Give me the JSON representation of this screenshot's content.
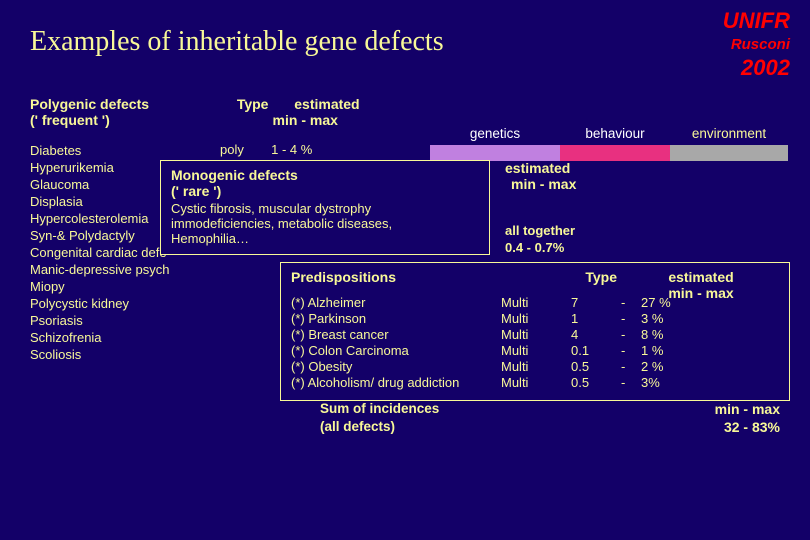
{
  "header": {
    "org": "UNIFR",
    "author": "Rusconi",
    "year": "2002"
  },
  "title": "Examples of inheritable gene defects",
  "poly": {
    "heading1": "Polygenic defects",
    "heading2": "(' frequent ')",
    "col_type": "Type",
    "col_est1": "estimated",
    "col_est2": "min  -  max",
    "first_type": "poly",
    "first_val": "1      -    4 %",
    "items": [
      "Diabetes",
      "Hyperurikemia",
      "Glaucoma",
      "Displasia",
      "Hypercolesterolemia",
      "Syn-& Polydactyly",
      "Congenital cardiac defe",
      "Manic-depressive psych",
      "Miopy",
      "Polycystic kidney",
      "Psoriasis",
      "Schizofrenia",
      "Scoliosis"
    ]
  },
  "bar": {
    "labels": [
      "genetics",
      "behaviour",
      "environment"
    ],
    "colors": [
      "#c080e0",
      "#e83080",
      "#a8a8a8"
    ],
    "widths": [
      130,
      110,
      118
    ],
    "label_colors": [
      "#ffffff",
      "#ffffff",
      "#f8f898"
    ]
  },
  "mono": {
    "title1": "Monogenic defects",
    "title2": "(' rare ')",
    "body1": "Cystic fibrosis, muscular dystrophy",
    "body2": "immodeficiencies, metabolic diseases,",
    "body3": "Hemophilia…",
    "est_head1": "estimated",
    "est_head2": "min  -  max",
    "val1": "all together",
    "val2": "0.4     -   0.7%"
  },
  "pred": {
    "title": "Predispositions",
    "type_head": "Type",
    "est_head1": "estimated",
    "est_head2": "min  -  max",
    "rows": [
      {
        "name": "(*) Alzheimer",
        "type": "Multi",
        "min": "7",
        "dash": "-",
        "max": "27 %"
      },
      {
        "name": "(*) Parkinson",
        "type": "Multi",
        "min": "1",
        "dash": "-",
        "max": "3 %"
      },
      {
        "name": "(*) Breast cancer",
        "type": "Multi",
        "min": "4",
        "dash": "-",
        "max": "8 %"
      },
      {
        "name": "(*) Colon Carcinoma",
        "type": "Multi",
        "min": "0.1",
        "dash": "-",
        "max": "1 %"
      },
      {
        "name": "(*) Obesity",
        "type": "Multi",
        "min": "0.5",
        "dash": "-",
        "max": "2 %"
      },
      {
        "name": "(*) Alcoholism/ drug addiction",
        "type": "Multi",
        "min": "0.5",
        "dash": "-",
        "max": "3%"
      }
    ]
  },
  "sum": {
    "line1": "Sum of incidences",
    "line2": "(all defects)",
    "val1": "min  -  max",
    "val2": "32     -  83%"
  }
}
